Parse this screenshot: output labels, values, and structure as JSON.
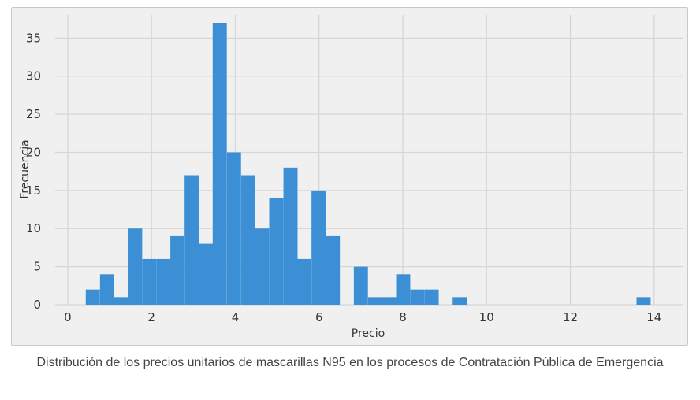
{
  "figure": {
    "caption": "Distribución de los precios unitarios de mascarillas N95 en los procesos de Contratación Pública de Emergencia"
  },
  "colors": {
    "plot_background": "#f0f0f0",
    "bar": "#3c8fd4",
    "grid": "#d6d6d6",
    "text": "#333333"
  },
  "chart_data": {
    "type": "bar",
    "title": "",
    "xlabel": "Precio",
    "ylabel": "Frecuencia",
    "xlim": [
      -0.3,
      14.7
    ],
    "ylim": [
      0,
      37
    ],
    "grid": true,
    "x_ticks": [
      0,
      2,
      4,
      6,
      8,
      10,
      12,
      14
    ],
    "y_ticks": [
      0,
      5,
      10,
      15,
      20,
      25,
      30,
      35
    ],
    "bin_width": 0.337,
    "bins": [
      {
        "x0": 0.43,
        "value": 2
      },
      {
        "x0": 0.77,
        "value": 4
      },
      {
        "x0": 1.1,
        "value": 1
      },
      {
        "x0": 1.44,
        "value": 10
      },
      {
        "x0": 1.78,
        "value": 6
      },
      {
        "x0": 2.12,
        "value": 6
      },
      {
        "x0": 2.45,
        "value": 9
      },
      {
        "x0": 2.79,
        "value": 17
      },
      {
        "x0": 3.13,
        "value": 8
      },
      {
        "x0": 3.46,
        "value": 37
      },
      {
        "x0": 3.8,
        "value": 20
      },
      {
        "x0": 4.14,
        "value": 17
      },
      {
        "x0": 4.47,
        "value": 10
      },
      {
        "x0": 4.81,
        "value": 14
      },
      {
        "x0": 5.15,
        "value": 18
      },
      {
        "x0": 5.48,
        "value": 6
      },
      {
        "x0": 5.82,
        "value": 15
      },
      {
        "x0": 6.16,
        "value": 9
      },
      {
        "x0": 6.5,
        "value": 0
      },
      {
        "x0": 6.83,
        "value": 5
      },
      {
        "x0": 7.17,
        "value": 1
      },
      {
        "x0": 7.51,
        "value": 1
      },
      {
        "x0": 7.84,
        "value": 4
      },
      {
        "x0": 8.18,
        "value": 2
      },
      {
        "x0": 8.52,
        "value": 2
      },
      {
        "x0": 9.19,
        "value": 1
      },
      {
        "x0": 13.58,
        "value": 1
      }
    ]
  }
}
